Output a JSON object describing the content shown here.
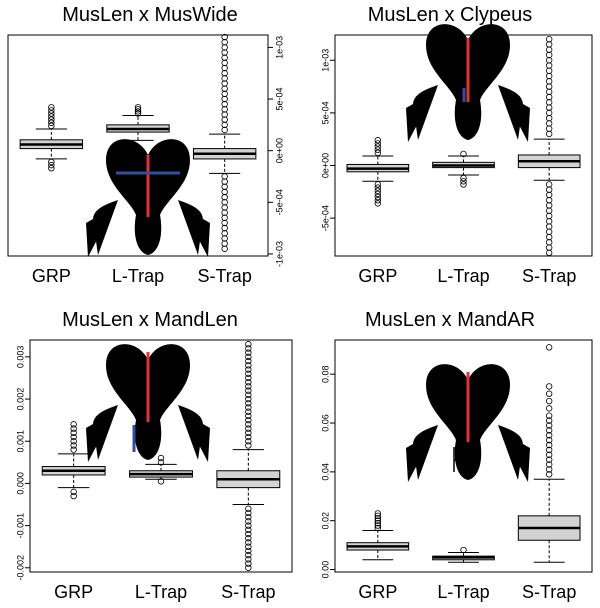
{
  "chart_data": [
    {
      "type": "box",
      "title": "MusLen x MusWide",
      "yaxis_side": "right",
      "categories": [
        "GRP",
        "L-Trap",
        "S-Trap"
      ],
      "boxes": [
        {
          "whislo": -8e-05,
          "q1": 2e-05,
          "med": 6e-05,
          "q3": 0.000105,
          "whishi": 0.00021,
          "fliers": [
            0.00024,
            0.00027,
            0.0003,
            0.00033,
            0.00036,
            0.00039,
            0.00042,
            -0.00011,
            -0.00014,
            -0.00017
          ]
        },
        {
          "whislo": 0.0001,
          "q1": 0.00018,
          "med": 0.00021,
          "q3": 0.00025,
          "whishi": 0.00034,
          "fliers": [
            0.00036,
            0.00038,
            0.0004,
            0.00042
          ]
        },
        {
          "whislo": -0.00022,
          "q1": -8e-05,
          "med": -3e-05,
          "q3": 2e-05,
          "whishi": 0.00016,
          "fliers": [
            0.0002,
            0.00025,
            0.0003,
            0.00035,
            0.0004,
            0.00045,
            0.0005,
            0.00055,
            0.0006,
            0.00065,
            0.0007,
            0.00075,
            0.0008,
            0.00085,
            0.0009,
            0.00095,
            0.001,
            0.00105,
            0.0011,
            -0.00025,
            -0.0003,
            -0.00035,
            -0.0004,
            -0.00045,
            -0.0005,
            -0.00055,
            -0.0006,
            -0.00065,
            -0.0007,
            -0.00075,
            -0.0008,
            -0.00085,
            -0.0009,
            -0.00095
          ]
        }
      ],
      "ylim": [
        -0.00102,
        0.00112
      ],
      "yticks": [
        {
          "value": -0.001,
          "label": "-1e-03"
        },
        {
          "value": -0.0005,
          "label": "-5e-04"
        },
        {
          "value": 0,
          "label": "0e+00"
        },
        {
          "value": 0.0005,
          "label": "5e-04"
        },
        {
          "value": 0.001,
          "label": "1e-03"
        }
      ]
    },
    {
      "type": "box",
      "title": "MusLen x Clypeus",
      "yaxis_side": "left",
      "categories": [
        "GRP",
        "L-Trap",
        "S-Trap"
      ],
      "boxes": [
        {
          "whislo": -0.00015,
          "q1": -6e-05,
          "med": -3e-05,
          "q3": 1e-05,
          "whishi": 9e-05,
          "fliers": [
            0.00012,
            0.00015,
            0.00018,
            0.00021,
            0.00024,
            -0.00018,
            -0.00021,
            -0.00024,
            -0.00027,
            -0.0003,
            -0.00033,
            -0.00036
          ]
        },
        {
          "whislo": -9e-05,
          "q1": -2e-05,
          "med": 0,
          "q3": 3e-05,
          "whishi": 9e-05,
          "fliers": [
            0.00011,
            -0.00012,
            -0.00015,
            -0.00018
          ]
        },
        {
          "whislo": -0.00014,
          "q1": -2e-05,
          "med": 4e-05,
          "q3": 0.0001,
          "whishi": 0.00025,
          "fliers": [
            0.0003,
            0.00035,
            0.0004,
            0.00045,
            0.0005,
            0.00055,
            0.0006,
            0.00065,
            0.0007,
            0.00075,
            0.0008,
            0.00085,
            0.0009,
            0.00095,
            0.001,
            0.00105,
            0.0011,
            0.00115,
            0.0012,
            -0.00018,
            -0.00023,
            -0.00028,
            -0.00033,
            -0.00038,
            -0.00043,
            -0.00048,
            -0.00053,
            -0.00058,
            -0.00063,
            -0.00068,
            -0.00073,
            -0.00078,
            -0.00083
          ]
        }
      ],
      "ylim": [
        -0.00086,
        0.00124
      ],
      "yticks": [
        {
          "value": -0.0005,
          "label": "-5e-04"
        },
        {
          "value": 0,
          "label": "0e+00"
        },
        {
          "value": 0.0005,
          "label": "5e-04"
        },
        {
          "value": 0.001,
          "label": "1e-03"
        }
      ]
    },
    {
      "type": "box",
      "title": "MusLen x MandLen",
      "yaxis_side": "left",
      "categories": [
        "GRP",
        "L-Trap",
        "S-Trap"
      ],
      "boxes": [
        {
          "whislo": -0.0001,
          "q1": 0.0002,
          "med": 0.0003,
          "q3": 0.0004,
          "whishi": 0.0007,
          "fliers": [
            0.0008,
            0.0009,
            0.001,
            0.0011,
            0.0012,
            0.0013,
            0.0014,
            -0.0002,
            -0.0003
          ]
        },
        {
          "whislo": 0.0001,
          "q1": 0.00015,
          "med": 0.00022,
          "q3": 0.0003,
          "whishi": 0.00045,
          "fliers": [
            0.0005,
            0.0006,
            5e-05
          ]
        },
        {
          "whislo": -0.0005,
          "q1": -0.0001,
          "med": 0.0001,
          "q3": 0.0003,
          "whishi": 0.0008,
          "fliers": [
            0.0009,
            0.001,
            0.0011,
            0.0012,
            0.0013,
            0.0014,
            0.0015,
            0.0016,
            0.0017,
            0.0018,
            0.0019,
            0.002,
            0.0021,
            0.0022,
            0.0023,
            0.0024,
            0.0025,
            0.0026,
            0.0027,
            0.0028,
            0.0029,
            0.003,
            0.0031,
            0.0032,
            0.0033,
            -0.0006,
            -0.0007,
            -0.0008,
            -0.0009,
            -0.001,
            -0.0011,
            -0.0012,
            -0.0013,
            -0.0014,
            -0.0015,
            -0.0016,
            -0.0017,
            -0.0018,
            -0.0019,
            -0.002
          ]
        }
      ],
      "ylim": [
        -0.0021,
        0.0034
      ],
      "yticks": [
        {
          "value": -0.002,
          "label": "-0.002"
        },
        {
          "value": -0.001,
          "label": "-0.001"
        },
        {
          "value": 0,
          "label": "0.000"
        },
        {
          "value": 0.001,
          "label": "0.001"
        },
        {
          "value": 0.002,
          "label": "0.002"
        },
        {
          "value": 0.003,
          "label": "0.003"
        }
      ]
    },
    {
      "type": "box",
      "title": "MusLen x MandAR",
      "yaxis_side": "left",
      "categories": [
        "GRP",
        "L-Trap",
        "S-Trap"
      ],
      "boxes": [
        {
          "whislo": 0.004,
          "q1": 0.008,
          "med": 0.0095,
          "q3": 0.011,
          "whishi": 0.016,
          "fliers": [
            0.017,
            0.018,
            0.019,
            0.02,
            0.021,
            0.022,
            0.023
          ]
        },
        {
          "whislo": 0.003,
          "q1": 0.004,
          "med": 0.005,
          "q3": 0.0055,
          "whishi": 0.007,
          "fliers": [
            0.008
          ]
        },
        {
          "whislo": 0.003,
          "q1": 0.012,
          "med": 0.017,
          "q3": 0.022,
          "whishi": 0.037,
          "fliers": [
            0.039,
            0.041,
            0.043,
            0.045,
            0.047,
            0.049,
            0.051,
            0.053,
            0.055,
            0.057,
            0.059,
            0.061,
            0.063,
            0.066,
            0.069,
            0.072,
            0.075,
            0.091
          ]
        }
      ],
      "ylim": [
        -0.001,
        0.094
      ],
      "yticks": [
        {
          "value": 0,
          "label": "0.00"
        },
        0.02,
        0.04,
        0.06,
        0.08
      ]
    }
  ]
}
